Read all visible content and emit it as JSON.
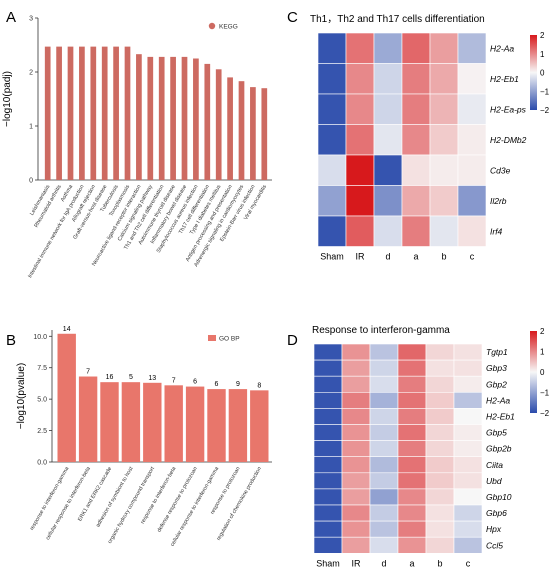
{
  "colors": {
    "bar": "#cd6a61",
    "bar_b": "#e8766b",
    "heat_low": "#2b4bab",
    "heat_mid": "#f7f7f7",
    "heat_high": "#d7191c"
  },
  "chart_data": [
    {
      "panel": "A",
      "type": "bar",
      "title": "",
      "xlabel": "",
      "ylabel": "−log10(padj)",
      "ylim": [
        0,
        3
      ],
      "yticks": [
        0,
        1,
        2,
        3
      ],
      "legend": "KEGG",
      "legend_position": "top-right",
      "categories": [
        "Leishmaniasis",
        "Rheumatoid arthritis",
        "Asthma",
        "Intestinal immune network for IgA production",
        "Allograft rejection",
        "Graft-versus-host disease",
        "Tuberculosis",
        "Toxoplasmosis",
        "Neuroactive ligand-receptor interaction",
        "Calcium signaling pathway",
        "Th1 and Th2 cell differentiation",
        "Autoimmune thyroid disease",
        "Inflammatory bowel disease",
        "Staphylococcus aureus infection",
        "Th17 cell differentiation",
        "Type I diabetes mellitus",
        "Antigen processing and presentation",
        "Adrenergic signaling in cardiomyocytes",
        "Epstein-Barr virus infection",
        "Viral myocarditis"
      ],
      "values": [
        2.47,
        2.47,
        2.47,
        2.47,
        2.47,
        2.47,
        2.47,
        2.47,
        2.33,
        2.28,
        2.28,
        2.28,
        2.28,
        2.25,
        2.15,
        2.05,
        1.9,
        1.83,
        1.72,
        1.7
      ]
    },
    {
      "panel": "B",
      "type": "bar",
      "title": "",
      "xlabel": "",
      "ylabel": "−log10(pvalue)",
      "ylim": [
        0,
        10.5
      ],
      "yticks": [
        0.0,
        2.5,
        5.0,
        7.5,
        10.0
      ],
      "legend": "GO BP",
      "legend_position": "top-right",
      "categories": [
        "response to interferon-gamma",
        "cellular response to interferon-beta",
        "ERK1 and ERK2 cascade",
        "adhesion of symbiont to host",
        "organic hydroxy compound transport",
        "response to interferon-beta",
        "defense response to protozoan",
        "cellular response to interferon-gamma",
        "response to protozoan",
        "regulation of chemokine production"
      ],
      "values": [
        10.2,
        6.8,
        6.35,
        6.35,
        6.3,
        6.1,
        6.0,
        5.8,
        5.8,
        5.7
      ],
      "data_labels": [
        "14",
        "7",
        "16",
        "5",
        "13",
        "7",
        "6",
        "6",
        "9",
        "8"
      ]
    },
    {
      "panel": "C",
      "type": "heatmap",
      "title": "Th1，Th2 and Th17 cells differentiation",
      "columns": [
        "Sham",
        "IR",
        "d",
        "a",
        "b",
        "c"
      ],
      "rows": [
        "H2-Aa",
        "H2-Eb1",
        "H2-Ea-ps",
        "H2-DMb2",
        "Cd3e",
        "Il2rb",
        "Irf4"
      ],
      "values": [
        [
          -1.9,
          1.2,
          -0.9,
          1.3,
          0.8,
          -0.7
        ],
        [
          -1.9,
          1.0,
          -0.4,
          1.1,
          0.7,
          0.05
        ],
        [
          -1.9,
          1.0,
          -0.4,
          1.1,
          0.6,
          -0.15
        ],
        [
          -1.9,
          1.2,
          -0.2,
          1.0,
          0.4,
          0.1
        ],
        [
          -0.3,
          2.0,
          -1.9,
          0.2,
          0.1,
          0.1
        ],
        [
          -1.0,
          2.2,
          -1.2,
          0.7,
          0.4,
          -1.1
        ],
        [
          -1.9,
          1.4,
          -0.3,
          1.1,
          -0.2,
          0.2
        ]
      ],
      "colorbar_ticks": [
        2,
        1,
        0,
        -1,
        -2
      ],
      "range": [
        -2,
        2
      ]
    },
    {
      "panel": "D",
      "type": "heatmap",
      "title": "Response to interferon-gamma",
      "columns": [
        "Sham",
        "IR",
        "d",
        "a",
        "b",
        "c"
      ],
      "rows": [
        "Tgtp1",
        "Gbp3",
        "Gbp2",
        "H2-Aa",
        "H2-Eb1",
        "Gbp5",
        "Gbp2b",
        "Ciita",
        "Ubd",
        "Gbp10",
        "Gbp6",
        "Hpx",
        "Ccl5"
      ],
      "values": [
        [
          -1.9,
          0.9,
          -0.6,
          1.3,
          0.3,
          0.2
        ],
        [
          -1.9,
          0.8,
          -0.4,
          1.2,
          0.2,
          0.2
        ],
        [
          -1.9,
          0.8,
          -0.3,
          1.1,
          0.3,
          0.1
        ],
        [
          -1.9,
          1.1,
          -0.8,
          1.2,
          0.4,
          -0.6
        ],
        [
          -1.9,
          1.0,
          -0.4,
          1.1,
          0.4,
          0.0
        ],
        [
          -1.9,
          0.9,
          -0.5,
          1.2,
          0.3,
          0.1
        ],
        [
          -1.9,
          0.9,
          -0.4,
          1.1,
          0.3,
          0.1
        ],
        [
          -1.9,
          0.9,
          -0.7,
          1.2,
          0.4,
          0.2
        ],
        [
          -1.9,
          0.8,
          -0.5,
          1.2,
          0.4,
          0.2
        ],
        [
          -1.9,
          0.8,
          -1.0,
          1.0,
          0.3,
          0.0
        ],
        [
          -1.9,
          1.0,
          -0.5,
          1.0,
          0.2,
          -0.4
        ],
        [
          -1.9,
          0.9,
          -0.6,
          1.1,
          0.2,
          -0.3
        ],
        [
          -1.9,
          0.8,
          -0.3,
          0.9,
          0.3,
          -0.6
        ]
      ],
      "colorbar_ticks": [
        2,
        1,
        0,
        -1,
        -2
      ],
      "range": [
        -2,
        2
      ]
    }
  ]
}
